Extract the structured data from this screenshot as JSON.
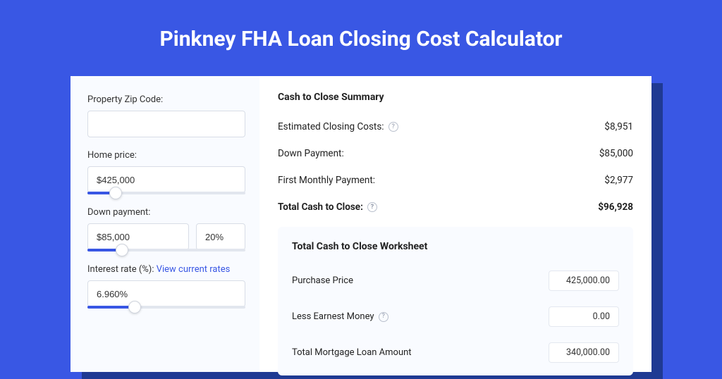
{
  "colors": {
    "page_bg": "#3957e4",
    "card_bg": "#ffffff",
    "card_shadow": "#1f3a93",
    "panel_bg": "#f9fbff",
    "border": "#d8dde6",
    "slider_track": "#e2e6ee",
    "slider_fill": "#3957e4",
    "link": "#3957e4",
    "text": "#222222",
    "muted": "#8a93a5"
  },
  "page": {
    "title": "Pinkney FHA Loan Closing Cost Calculator"
  },
  "form": {
    "zip": {
      "label": "Property Zip Code:",
      "value": ""
    },
    "home_price": {
      "label": "Home price:",
      "value": "$425,000",
      "slider_pct": 18
    },
    "down_payment": {
      "label": "Down payment:",
      "value": "$85,000",
      "pct": "20%",
      "slider_pct": 22
    },
    "interest_rate": {
      "label": "Interest rate (%):",
      "link_text": "View current rates",
      "value": "6.960%",
      "slider_pct": 30
    }
  },
  "summary": {
    "title": "Cash to Close Summary",
    "rows": [
      {
        "label": "Estimated Closing Costs:",
        "help": true,
        "value": "$8,951",
        "bold": false
      },
      {
        "label": "Down Payment:",
        "help": false,
        "value": "$85,000",
        "bold": false
      },
      {
        "label": "First Monthly Payment:",
        "help": false,
        "value": "$2,977",
        "bold": false
      },
      {
        "label": "Total Cash to Close:",
        "help": true,
        "value": "$96,928",
        "bold": true
      }
    ]
  },
  "worksheet": {
    "title": "Total Cash to Close Worksheet",
    "rows": [
      {
        "label": "Purchase Price",
        "help": false,
        "value": "425,000.00"
      },
      {
        "label": "Less Earnest Money",
        "help": true,
        "value": "0.00"
      },
      {
        "label": "Total Mortgage Loan Amount",
        "help": false,
        "value": "340,000.00"
      }
    ]
  }
}
